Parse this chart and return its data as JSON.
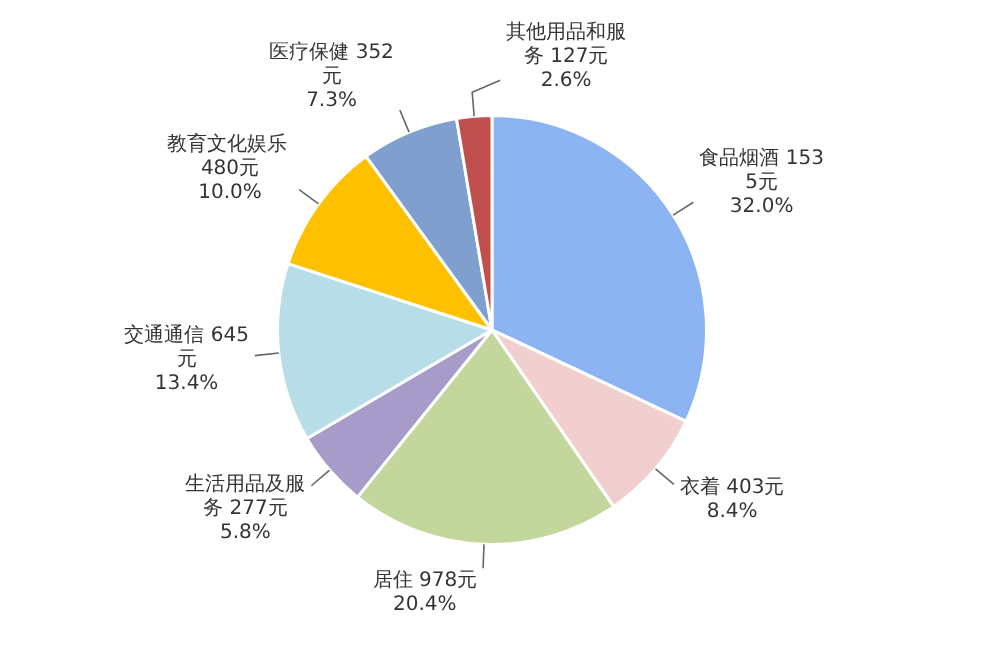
{
  "chart_data": {
    "type": "pie",
    "categories": [
      "食品烟酒",
      "衣着",
      "居住",
      "生活用品及服务",
      "交通通信",
      "教育文化娱乐",
      "医疗保健",
      "其他用品和服务"
    ],
    "values": [
      1535,
      403,
      978,
      277,
      645,
      480,
      352,
      127
    ],
    "colors": [
      "#8db4f2",
      "#f2cfcf",
      "#c3d69b",
      "#a79cc9",
      "#b7dde8",
      "#ffc000",
      "#7f9fcf",
      "#c0504d"
    ],
    "value_labels": [
      "1535元\n32.0%",
      "403元\n8.4%",
      "978元\n20.4%",
      "277元\n5.8%",
      "645元\n13.4%",
      "480元\n10.0%",
      "352元\n7.3%",
      "127元\n2.6%"
    ]
  }
}
